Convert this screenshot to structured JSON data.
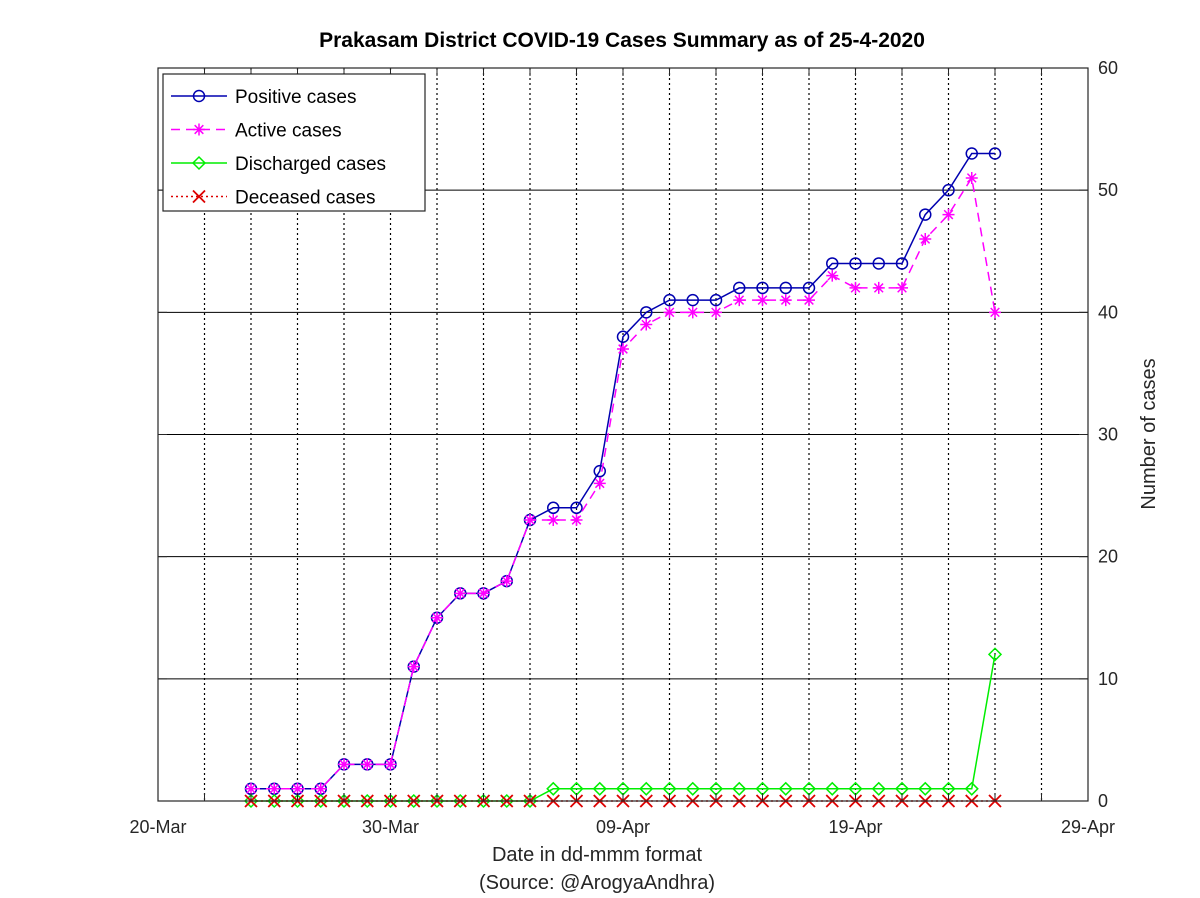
{
  "chart_data": {
    "type": "line",
    "title": "Prakasam District COVID-19 Cases Summary as of 25-4-2020",
    "xlabel": "Date in dd-mmm format",
    "xlabel_source": "(Source: @ArogyaAndhra)",
    "ylabel": "Number of cases",
    "x_start_date": "2020-03-20",
    "xlim": [
      0,
      40
    ],
    "xticks": [
      {
        "day": 0,
        "label": "20-Mar"
      },
      {
        "day": 10,
        "label": "30-Mar"
      },
      {
        "day": 20,
        "label": "09-Apr"
      },
      {
        "day": 30,
        "label": "19-Apr"
      },
      {
        "day": 40,
        "label": "29-Apr"
      }
    ],
    "ylim": [
      0,
      60
    ],
    "yticks": [
      0,
      10,
      20,
      30,
      40,
      50,
      60
    ],
    "y_axis_side": "right",
    "grid_x_style": "dotted",
    "grid_y_style": "solid",
    "x_days": [
      4,
      5,
      6,
      7,
      8,
      9,
      10,
      11,
      12,
      13,
      14,
      15,
      16,
      17,
      18,
      19,
      20,
      21,
      22,
      23,
      24,
      25,
      26,
      27,
      28,
      29,
      30,
      31,
      32,
      33,
      34,
      35,
      36
    ],
    "legend_position": "top-left",
    "series": [
      {
        "name": "Positive cases",
        "color": "#0000b0",
        "dash": "solid",
        "marker": "circle",
        "values": [
          1,
          1,
          1,
          1,
          3,
          3,
          3,
          11,
          15,
          17,
          17,
          18,
          23,
          24,
          24,
          27,
          38,
          40,
          41,
          41,
          41,
          42,
          42,
          42,
          42,
          44,
          44,
          44,
          44,
          48,
          50,
          53,
          53
        ]
      },
      {
        "name": "Active cases",
        "color": "#ff00ff",
        "dash": "dashed",
        "marker": "star",
        "values": [
          1,
          1,
          1,
          1,
          3,
          3,
          3,
          11,
          15,
          17,
          17,
          18,
          23,
          23,
          23,
          26,
          37,
          39,
          40,
          40,
          40,
          41,
          41,
          41,
          41,
          43,
          42,
          42,
          42,
          46,
          48,
          51,
          40
        ]
      },
      {
        "name": "Discharged cases",
        "color": "#00ee00",
        "dash": "solid",
        "marker": "diamond",
        "values": [
          0,
          0,
          0,
          0,
          0,
          0,
          0,
          0,
          0,
          0,
          0,
          0,
          0,
          1,
          1,
          1,
          1,
          1,
          1,
          1,
          1,
          1,
          1,
          1,
          1,
          1,
          1,
          1,
          1,
          1,
          1,
          1,
          12
        ]
      },
      {
        "name": "Deceased cases",
        "color": "#dd0000",
        "dash": "dotted",
        "marker": "x",
        "values": [
          0,
          0,
          0,
          0,
          0,
          0,
          0,
          0,
          0,
          0,
          0,
          0,
          0,
          0,
          0,
          0,
          0,
          0,
          0,
          0,
          0,
          0,
          0,
          0,
          0,
          0,
          0,
          0,
          0,
          0,
          0,
          0,
          0
        ]
      }
    ]
  }
}
